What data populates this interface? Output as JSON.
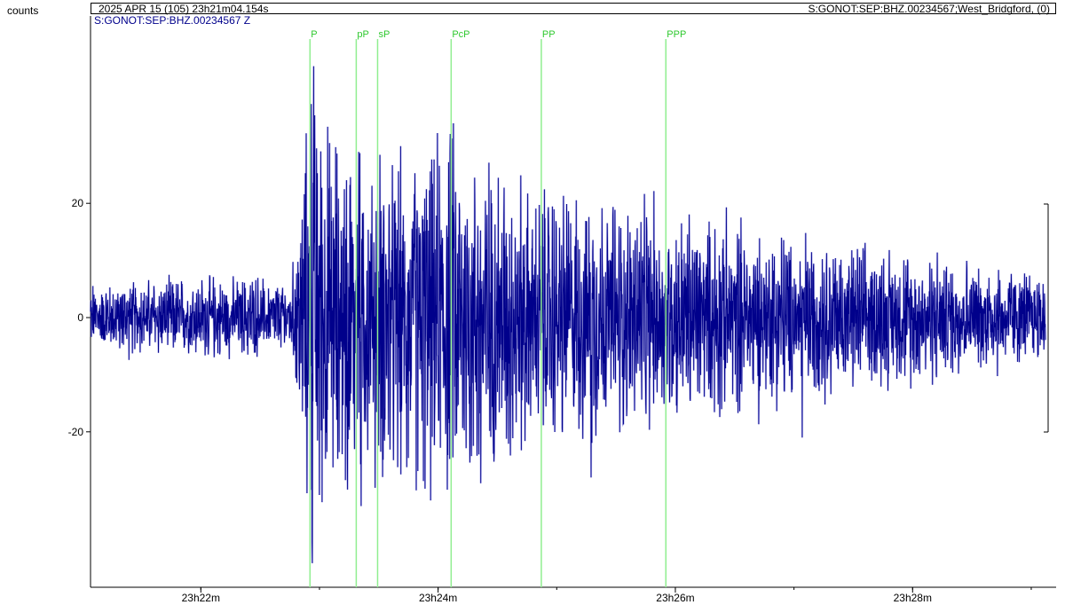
{
  "header": {
    "y_unit": "counts",
    "datetime": "2025 APR 15 (105)  23h21m04.154s",
    "station": "S:GONOT:SEP:BHZ.00234567;West_Bridgford, (0)",
    "trace_label": "S:GONOT:SEP:BHZ.00234567 Z"
  },
  "colors": {
    "trace": "#00008b",
    "trace_fill": "#8080e0",
    "phase": "#90ee90",
    "phase_text": "#2ec82e"
  },
  "chart_data": {
    "type": "line",
    "title": "",
    "xlabel": "",
    "ylabel": "counts",
    "x_unit": "minutes after 23h21m04.154s",
    "xlim": [
      0,
      8.05
    ],
    "ylim": [
      -48,
      52
    ],
    "yticks": [
      20,
      0,
      -20
    ],
    "ytick_labels": [
      "20",
      "0",
      "-20"
    ],
    "xticks": [
      0.93,
      2.93,
      4.93,
      6.93
    ],
    "xtick_labels": [
      "23h22m",
      "23h24m",
      "23h26m",
      "23h28m"
    ],
    "grid": false,
    "phases": [
      {
        "name": "P",
        "t": 1.85
      },
      {
        "name": "pP",
        "t": 2.24
      },
      {
        "name": "sP",
        "t": 2.42
      },
      {
        "name": "PcP",
        "t": 3.04
      },
      {
        "name": "PP",
        "t": 3.8
      },
      {
        "name": "PPP",
        "t": 4.85
      }
    ],
    "series": [
      {
        "values_description_is_none": true,
        "envelope": [
          {
            "t": 0.0,
            "amp": 5
          },
          {
            "t": 1.7,
            "amp": 6
          },
          {
            "t": 1.85,
            "amp": 32
          },
          {
            "t": 2.3,
            "amp": 22
          },
          {
            "t": 3.0,
            "amp": 25
          },
          {
            "t": 3.8,
            "amp": 18
          },
          {
            "t": 5.0,
            "amp": 15
          },
          {
            "t": 6.5,
            "amp": 10
          },
          {
            "t": 8.05,
            "amp": 7
          }
        ],
        "peaks": [
          {
            "t": 1.88,
            "v": 44
          },
          {
            "t": 1.87,
            "v": -43
          },
          {
            "t": 2.28,
            "v": -33
          },
          {
            "t": 2.26,
            "v": 29
          },
          {
            "t": 3.06,
            "v": 34
          },
          {
            "t": 3.29,
            "v": -29
          },
          {
            "t": 4.22,
            "v": 27
          },
          {
            "t": 4.22,
            "v": -28
          },
          {
            "t": 6.0,
            "v": -21
          }
        ]
      }
    ]
  }
}
